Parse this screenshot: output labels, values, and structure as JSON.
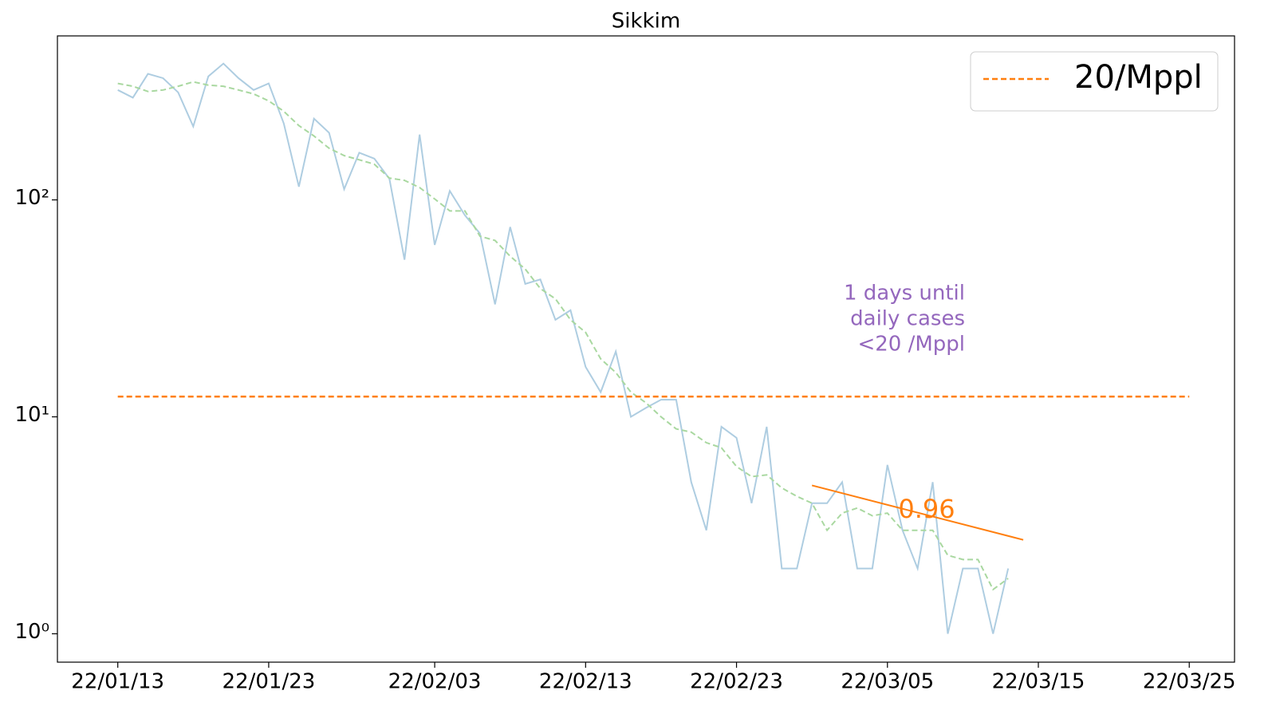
{
  "chart_data": {
    "type": "line",
    "title": "Sikkim",
    "log_y": true,
    "x": [
      "22/01/13",
      "22/01/14",
      "22/01/15",
      "22/01/16",
      "22/01/17",
      "22/01/18",
      "22/01/19",
      "22/01/20",
      "22/01/21",
      "22/01/22",
      "22/01/23",
      "22/01/24",
      "22/01/25",
      "22/01/26",
      "22/01/27",
      "22/01/28",
      "22/01/29",
      "22/01/30",
      "22/01/31",
      "22/02/01",
      "22/02/02",
      "22/02/03",
      "22/02/04",
      "22/02/05",
      "22/02/06",
      "22/02/07",
      "22/02/08",
      "22/02/09",
      "22/02/10",
      "22/02/11",
      "22/02/12",
      "22/02/13",
      "22/02/14",
      "22/02/15",
      "22/02/16",
      "22/02/17",
      "22/02/18",
      "22/02/19",
      "22/02/20",
      "22/02/21",
      "22/02/22",
      "22/02/23",
      "22/02/24",
      "22/02/25",
      "22/02/26",
      "22/02/27",
      "22/02/28",
      "22/03/01",
      "22/03/02",
      "22/03/03",
      "22/03/04",
      "22/03/05",
      "22/03/06",
      "22/03/07",
      "22/03/08",
      "22/03/09",
      "22/03/10",
      "22/03/11",
      "22/03/12",
      "22/03/13"
    ],
    "series": [
      {
        "color": "#aecde1",
        "dash": false,
        "values": [
          321,
          296,
          381,
          364,
          313,
          218,
          371,
          425,
          364,
          321,
          344,
          225,
          115,
          237,
          204,
          112,
          165,
          155,
          125,
          53,
          200,
          62,
          110,
          85,
          70,
          33,
          75,
          41,
          43,
          28,
          31,
          17,
          13,
          20,
          10,
          11,
          12,
          12,
          5,
          3,
          9,
          8,
          4,
          9,
          2,
          2,
          4,
          4,
          5,
          2,
          2,
          6,
          3,
          2,
          5,
          1,
          2,
          2,
          1,
          2
        ]
      },
      {
        "color": "#a9d8a0",
        "dash": true,
        "values": [
          344,
          334,
          316,
          321,
          334,
          350,
          338,
          334,
          321,
          308,
          286,
          256,
          220,
          197,
          173,
          160,
          153,
          146,
          126,
          123,
          114,
          101,
          89,
          89,
          68,
          65,
          55,
          48,
          39,
          35,
          28,
          24.5,
          18.5,
          16,
          13,
          11.6,
          10,
          8.8,
          8.5,
          7.6,
          7.2,
          5.9,
          5.3,
          5.4,
          4.7,
          4.3,
          4.0,
          3.0,
          3.6,
          3.8,
          3.5,
          3.6,
          3.0,
          3.0,
          3.0,
          2.3,
          2.2,
          2.2,
          1.6,
          1.8
        ]
      },
      {
        "name": "20/Mppl",
        "color": "#ff7f0e",
        "dash": true,
        "x": [
          "22/01/13",
          "22/03/25"
        ],
        "values": [
          12.4,
          12.4
        ]
      },
      {
        "color": "#ff7f0e",
        "dash": false,
        "x": [
          "22/02/28",
          "22/03/14"
        ],
        "values": [
          4.83,
          2.71
        ]
      }
    ],
    "annotations": [
      {
        "text": "0.96",
        "color": "#ff7f0e"
      },
      {
        "lines": [
          "1 days until",
          "daily cases",
          "<20 /Mppl"
        ],
        "color": "#9467bd"
      }
    ],
    "xlim": [
      "22/01/09",
      "22/03/28"
    ],
    "xticks": [
      "22/01/13",
      "22/01/23",
      "22/02/03",
      "22/02/13",
      "22/02/23",
      "22/03/05",
      "22/03/15",
      "22/03/25"
    ],
    "ylim": [
      0.74,
      570
    ],
    "yticks": [
      {
        "value": 1,
        "label": "10⁰"
      },
      {
        "value": 10,
        "label": "10¹"
      },
      {
        "value": 100,
        "label": "10²"
      }
    ],
    "legend": "upper right"
  }
}
